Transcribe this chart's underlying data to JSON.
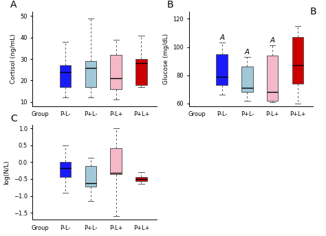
{
  "title_A": "A",
  "title_B": "B",
  "title_C": "C",
  "ylabel_A": "Cortisol (ng/mL)",
  "ylabel_B": "Glucose (mg/dL)",
  "ylabel_C": "log(N/L)",
  "xlabel": "Group",
  "categories": [
    "P-L-",
    "P+L-",
    "P-L+",
    "P+L+"
  ],
  "colors": [
    "#1a1aff",
    "#a0c8d8",
    "#f4b8c8",
    "#cc0000"
  ],
  "A_whislo": [
    12,
    12,
    11,
    17
  ],
  "A_q1": [
    17,
    17,
    16,
    18
  ],
  "A_med": [
    24,
    26,
    21,
    28
  ],
  "A_q3": [
    27,
    29,
    32,
    30
  ],
  "A_whishi": [
    38,
    49,
    39,
    41
  ],
  "A_ylim": [
    8,
    52
  ],
  "A_yticks": [
    10,
    20,
    30,
    40,
    50
  ],
  "B_whislo": [
    66,
    62,
    61,
    60
  ],
  "B_q1": [
    73,
    68,
    62,
    74
  ],
  "B_med": [
    79,
    71,
    68,
    87
  ],
  "B_q3": [
    95,
    86,
    94,
    107
  ],
  "B_whishi": [
    103,
    93,
    101,
    115
  ],
  "B_ylim": [
    58,
    125
  ],
  "B_yticks": [
    60,
    80,
    100,
    120
  ],
  "B_sig": [
    "A",
    "A",
    "A",
    ""
  ],
  "C_whislo": [
    -0.9,
    -1.15,
    -1.6,
    -0.65
  ],
  "C_q1": [
    -0.45,
    -0.72,
    -0.35,
    -0.57
  ],
  "C_med": [
    -0.18,
    -0.62,
    -0.32,
    -0.5
  ],
  "C_q3": [
    0.0,
    -0.12,
    0.42,
    -0.43
  ],
  "C_whishi": [
    0.5,
    0.12,
    1.0,
    -0.3
  ],
  "C_ylim": [
    -1.7,
    1.1
  ],
  "C_yticks": [
    -1.5,
    -1.0,
    -0.5,
    0.0,
    0.5,
    1.0
  ]
}
